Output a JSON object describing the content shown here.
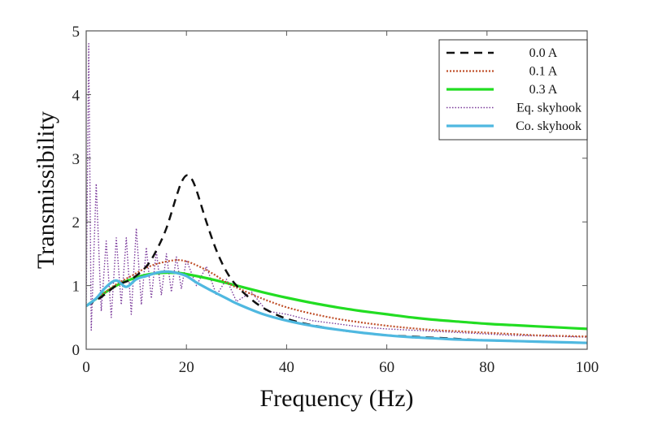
{
  "chart_data": {
    "type": "line",
    "title": "",
    "xlabel": "Frequency (Hz)",
    "ylabel": "Transmissibility",
    "xlim": [
      0,
      100
    ],
    "ylim": [
      0,
      5
    ],
    "xticks": [
      0,
      20,
      40,
      60,
      80,
      100
    ],
    "yticks": [
      0,
      1,
      2,
      3,
      4,
      5
    ],
    "xtick_labels": [
      "0",
      "20",
      "40",
      "60",
      "80",
      "100"
    ],
    "ytick_labels": [
      "0",
      "1",
      "2",
      "3",
      "4",
      "5"
    ],
    "grid": false,
    "legend_position": "top-right",
    "series": [
      {
        "name": "0.0 A",
        "color": "#111111",
        "style": "dashed",
        "x": [
          0,
          3,
          6,
          9,
          12,
          14,
          16,
          18,
          19,
          20,
          21,
          22,
          24,
          26,
          28,
          30,
          33,
          36,
          40,
          45,
          50,
          55,
          60,
          65,
          70,
          75,
          80,
          85,
          90,
          95,
          100
        ],
        "y": [
          0.68,
          0.82,
          1.0,
          1.1,
          1.3,
          1.55,
          1.9,
          2.4,
          2.62,
          2.73,
          2.68,
          2.5,
          2.0,
          1.55,
          1.22,
          1.0,
          0.78,
          0.62,
          0.48,
          0.38,
          0.31,
          0.26,
          0.22,
          0.2,
          0.18,
          0.16,
          0.14,
          0.13,
          0.12,
          0.11,
          0.1
        ]
      },
      {
        "name": "0.1 A",
        "color": "#c0502a",
        "style": "dotted",
        "x": [
          0,
          3,
          6,
          9,
          12,
          15,
          18,
          20,
          22,
          25,
          28,
          30,
          35,
          40,
          45,
          50,
          55,
          60,
          65,
          70,
          75,
          80,
          85,
          90,
          95,
          100
        ],
        "y": [
          0.68,
          0.85,
          1.02,
          1.15,
          1.28,
          1.36,
          1.4,
          1.38,
          1.32,
          1.2,
          1.05,
          0.97,
          0.8,
          0.66,
          0.56,
          0.48,
          0.42,
          0.37,
          0.33,
          0.3,
          0.28,
          0.26,
          0.24,
          0.22,
          0.21,
          0.2
        ]
      },
      {
        "name": "0.3 A",
        "color": "#22dd22",
        "style": "solid-thick",
        "x": [
          0,
          3,
          6,
          9,
          12,
          15,
          18,
          20,
          25,
          30,
          35,
          40,
          45,
          50,
          55,
          60,
          65,
          70,
          75,
          80,
          85,
          90,
          95,
          100
        ],
        "y": [
          0.68,
          0.85,
          1.0,
          1.1,
          1.17,
          1.2,
          1.2,
          1.18,
          1.1,
          1.0,
          0.9,
          0.81,
          0.73,
          0.66,
          0.6,
          0.55,
          0.5,
          0.46,
          0.43,
          0.4,
          0.38,
          0.36,
          0.34,
          0.32
        ]
      },
      {
        "name": "Eq. skyhook",
        "color": "#7a3a9a",
        "style": "dotted-noisy",
        "x": [
          0,
          0.5,
          1,
          2,
          3,
          4,
          5,
          6,
          7,
          8,
          9,
          10,
          11,
          12,
          13,
          14,
          15,
          16,
          17,
          18,
          19,
          20,
          22,
          24,
          26,
          28,
          30,
          33,
          36,
          40,
          45,
          50,
          55,
          60,
          65,
          70,
          75,
          80,
          85,
          90,
          95,
          100
        ],
        "y": [
          0.68,
          4.8,
          0.3,
          2.6,
          0.6,
          1.7,
          0.5,
          1.75,
          0.7,
          1.75,
          0.55,
          1.9,
          0.7,
          1.6,
          0.8,
          1.55,
          0.85,
          1.5,
          0.9,
          1.45,
          0.95,
          1.4,
          1.0,
          1.3,
          0.85,
          1.1,
          0.75,
          0.9,
          0.6,
          0.55,
          0.45,
          0.4,
          0.35,
          0.32,
          0.3,
          0.28,
          0.26,
          0.24,
          0.22,
          0.21,
          0.2,
          0.19
        ]
      },
      {
        "name": "Co. skyhook",
        "color": "#4fb8e0",
        "style": "solid",
        "x": [
          0,
          2,
          4,
          6,
          8,
          10,
          12,
          14,
          16,
          18,
          20,
          22,
          25,
          28,
          30,
          35,
          40,
          45,
          50,
          55,
          60,
          65,
          70,
          75,
          80,
          85,
          90,
          95,
          100
        ],
        "y": [
          0.68,
          0.8,
          0.98,
          1.08,
          0.98,
          1.1,
          1.15,
          1.2,
          1.22,
          1.2,
          1.15,
          1.05,
          0.92,
          0.8,
          0.72,
          0.56,
          0.45,
          0.37,
          0.31,
          0.26,
          0.22,
          0.19,
          0.17,
          0.15,
          0.14,
          0.13,
          0.12,
          0.11,
          0.1
        ]
      }
    ]
  }
}
